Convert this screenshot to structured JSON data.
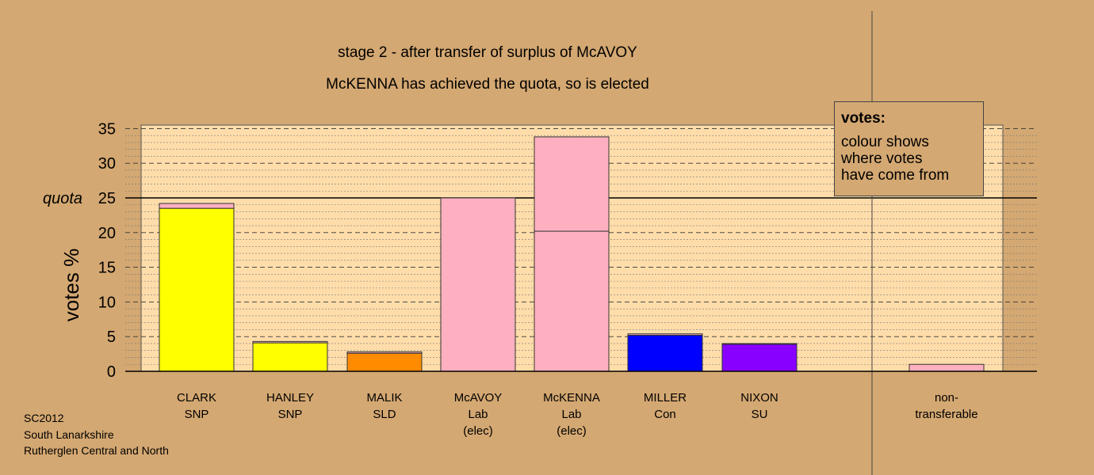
{
  "chart_data": {
    "type": "bar",
    "title": "stage 2 - after transfer of surplus of McAVOY",
    "subtitle": "McKENNA has achieved the quota, so is elected",
    "ylabel": "votes %",
    "ylim": [
      0,
      35.5
    ],
    "yticks": [
      0,
      5,
      10,
      15,
      20,
      25,
      30,
      35
    ],
    "quota": 25,
    "quota_label": "quota",
    "candidates": [
      {
        "lines": [
          "CLARK",
          "SNP"
        ],
        "segments": [
          {
            "value": 23.5,
            "color": "#FFFF00"
          },
          {
            "value": 0.7,
            "color": "#FFB0C0"
          }
        ]
      },
      {
        "lines": [
          "HANLEY",
          "SNP"
        ],
        "segments": [
          {
            "value": 4.1,
            "color": "#FFFF00"
          },
          {
            "value": 0.2,
            "color": "#FFB0C0"
          }
        ]
      },
      {
        "lines": [
          "MALIK",
          "SLD"
        ],
        "segments": [
          {
            "value": 2.6,
            "color": "#FF8C00"
          },
          {
            "value": 0.2,
            "color": "#FFB0C0"
          }
        ]
      },
      {
        "lines": [
          "McAVOY",
          "Lab",
          "(elec)"
        ],
        "segments": [
          {
            "value": 25.0,
            "color": "#FFB0C0"
          }
        ]
      },
      {
        "lines": [
          "McKENNA",
          "Lab",
          "(elec)"
        ],
        "segments": [
          {
            "value": 20.2,
            "color": "#FFB0C0"
          },
          {
            "value": 13.6,
            "color": "#FFB0C0"
          }
        ]
      },
      {
        "lines": [
          "MILLER",
          "Con"
        ],
        "segments": [
          {
            "value": 5.2,
            "color": "#0000FF"
          },
          {
            "value": 0.2,
            "color": "#FFB0C0"
          }
        ]
      },
      {
        "lines": [
          "NIXON",
          "SU"
        ],
        "segments": [
          {
            "value": 3.9,
            "color": "#8800FF"
          },
          {
            "value": 0.1,
            "color": "#FFB0C0"
          }
        ]
      },
      {
        "lines": [
          "non-",
          "transferable"
        ],
        "segments": [
          {
            "value": 1.0,
            "color": "#FFB0C0"
          }
        ]
      }
    ],
    "colors": {
      "plot_bg": "#FFDDAA",
      "page_bg": "#D4A872"
    }
  },
  "legend": {
    "heading": "votes:",
    "lines": [
      "colour shows",
      "where votes",
      "have come from"
    ]
  },
  "footer": [
    "SC2012",
    "South Lanarkshire",
    "Rutherglen Central and North"
  ]
}
